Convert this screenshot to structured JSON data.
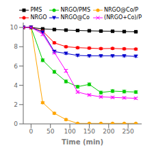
{
  "chart_data": {
    "type": "line",
    "title": "",
    "xlabel": "Time (min)",
    "ylabel": "",
    "x": [
      -20,
      0,
      30,
      60,
      90,
      120,
      150,
      180,
      210,
      240,
      270
    ],
    "xlim": [
      -20,
      285
    ],
    "xticks": [
      0,
      50,
      100,
      150,
      200,
      250
    ],
    "ylim": [
      0,
      10.5
    ],
    "yticks": [
      0,
      2,
      4,
      6,
      8,
      10
    ],
    "grid": false,
    "legend": "upper right",
    "series": [
      {
        "name": "PMS",
        "color": "#000000",
        "marker": "square",
        "line_style": "solid",
        "values": [
          10,
          10,
          9.85,
          9.78,
          9.72,
          9.68,
          9.65,
          9.62,
          9.6,
          9.57,
          9.55
        ],
        "errors": [
          0,
          0,
          0.05,
          0.05,
          0.05,
          0.05,
          0.05,
          0.05,
          0.05,
          0.05,
          0.05
        ]
      },
      {
        "name": "NRGO/PMS",
        "color": "#00cc00",
        "marker": "circle",
        "line_style": "solid",
        "values": [
          10,
          10,
          6.6,
          5.4,
          4.4,
          3.85,
          4.1,
          3.25,
          3.4,
          3.35,
          3.3
        ],
        "errors": [
          0,
          0,
          0.15,
          0.15,
          0.15,
          0.15,
          0.15,
          0.15,
          0.15,
          0.15,
          0.15
        ]
      },
      {
        "name": "NRGO@Co/P",
        "color": "#ffa500",
        "marker": "circle",
        "line_style": "solid",
        "values": [
          10,
          10,
          2.2,
          1.1,
          0.45,
          0.05,
          0.05,
          0.05,
          0.05,
          0.05,
          0.05
        ],
        "errors": [
          0,
          0,
          0.1,
          0.1,
          0.1,
          0.02,
          0.02,
          0.02,
          0.02,
          0.02,
          0.02
        ]
      },
      {
        "name": "NRGO",
        "color": "#ff0000",
        "marker": "circle",
        "line_style": "solid",
        "values": [
          10,
          10,
          9.6,
          8.4,
          8.0,
          7.9,
          7.85,
          7.8,
          7.82,
          7.78,
          7.75
        ],
        "errors": [
          0,
          0,
          0.1,
          0.1,
          0.1,
          0.1,
          0.1,
          0.1,
          0.1,
          0.1,
          0.1
        ]
      },
      {
        "name": "NRGO@Co",
        "color": "#0000cc",
        "marker": "triangle-down",
        "line_style": "solid",
        "values": [
          10,
          10,
          9.5,
          7.5,
          7.3,
          7.1,
          7.05,
          7.05,
          7.05,
          7.05,
          7.0
        ],
        "errors": [
          0,
          0,
          0.1,
          0.1,
          0.1,
          0.1,
          0.1,
          0.1,
          0.1,
          0.1,
          0.1
        ]
      },
      {
        "name": "(NRGO+Co)/P",
        "color": "#ff00ff",
        "marker": "x",
        "line_style": "solid",
        "values": [
          10,
          10,
          9.3,
          7.4,
          5.5,
          3.3,
          3.0,
          2.8,
          2.75,
          2.7,
          2.65
        ],
        "errors": [
          0,
          0,
          0.15,
          0.15,
          0.15,
          0.1,
          0.1,
          0.1,
          0.1,
          0.1,
          0.1
        ]
      }
    ]
  }
}
